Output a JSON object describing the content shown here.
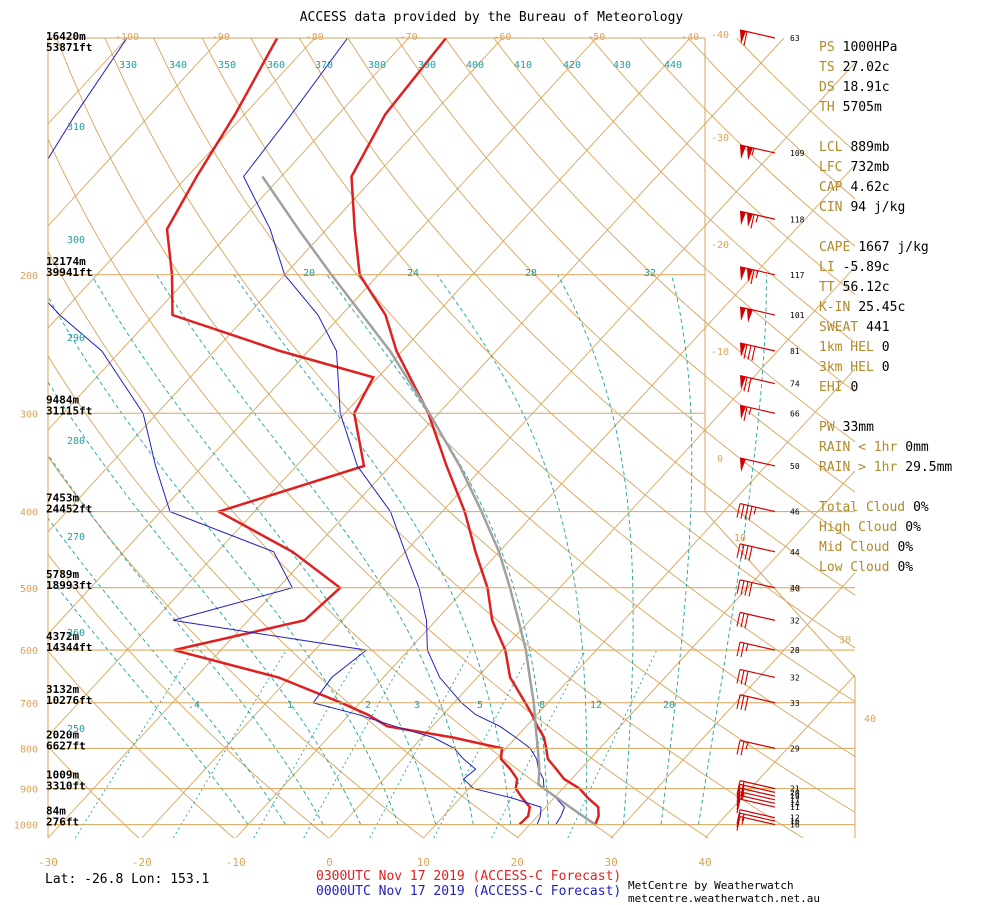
{
  "header": {
    "title": "ACCESS data provided by the Bureau of Meteorology"
  },
  "legend": {
    "forecast_0300": "0300UTC Nov 17 2019 (ACCESS-C Forecast)",
    "forecast_0000": "0000UTC Nov 17 2019 (ACCESS-C Forecast)"
  },
  "location": {
    "text": "Lat: -26.8  Lon: 153.1"
  },
  "credit": {
    "text": "MetCentre by Weatherwatch metcentre.weatherwatch.net.au"
  },
  "colors": {
    "temp_0300": "#e02020",
    "temp_0000": "#2020c0",
    "parcel": "#a0a0a0",
    "isotherm": "#d9a45a",
    "dry_adiabat": "#d9a45a",
    "moist_adiabat": "#20a0a0",
    "mixing_ratio": "#20a0a0",
    "wind_barb": "#d00000",
    "panel_key": "#b08a2a"
  },
  "indices": {
    "group1": [
      {
        "key": "PS",
        "value": "1000HPa"
      },
      {
        "key": "TS",
        "value": "27.02c"
      },
      {
        "key": "DS",
        "value": "18.91c"
      },
      {
        "key": "TH",
        "value": "5705m"
      }
    ],
    "group2": [
      {
        "key": "LCL",
        "value": "889mb"
      },
      {
        "key": "LFC",
        "value": "732mb"
      },
      {
        "key": "CAP",
        "value": "4.62c"
      },
      {
        "key": "CIN",
        "value": "94 j/kg"
      }
    ],
    "group3": [
      {
        "key": "CAPE",
        "value": "1667 j/kg"
      },
      {
        "key": "LI",
        "value": "-5.89c"
      },
      {
        "key": "TT",
        "value": "56.12c"
      },
      {
        "key": "K-IN",
        "value": "25.45c"
      },
      {
        "key": "SWEAT",
        "value": "441"
      },
      {
        "key": "1km HEL",
        "value": "0"
      },
      {
        "key": "3km HEL",
        "value": "0"
      },
      {
        "key": "EHI",
        "value": "0"
      }
    ],
    "group4": [
      {
        "key": "PW",
        "value": "33mm"
      },
      {
        "key": "RAIN < 1hr",
        "value": "0mm"
      },
      {
        "key": "RAIN > 1hr",
        "value": "29.5mm"
      }
    ],
    "group5": [
      {
        "key": "Total Cloud",
        "value": "0%"
      },
      {
        "key": "High Cloud",
        "value": "0%"
      },
      {
        "key": "Mid Cloud",
        "value": "0%"
      },
      {
        "key": "Low Cloud",
        "value": "0%"
      }
    ]
  },
  "chart_data": {
    "type": "line",
    "title": "ACCESS data provided by the Bureau of Meteorology",
    "xlabel": "",
    "ylabel": "",
    "x_ticks": [
      -30,
      -20,
      -10,
      0,
      10,
      20,
      30,
      40
    ],
    "top_x_ticks": [
      -100,
      -90,
      -80,
      -70,
      -60,
      -50,
      -40
    ],
    "pressure_levels": [
      {
        "p": 100,
        "height": "16420m",
        "height_ft": "53871ft"
      },
      {
        "p": 200,
        "height": "12174m",
        "height_ft": "39941ft",
        "label": "200"
      },
      {
        "p": 300,
        "height": "9484m",
        "height_ft": "31115ft",
        "label": "300"
      },
      {
        "p": 400,
        "height": "7453m",
        "height_ft": "24452ft",
        "label": "400"
      },
      {
        "p": 500,
        "height": "5789m",
        "height_ft": "18993ft",
        "label": "500"
      },
      {
        "p": 600,
        "height": "4372m",
        "height_ft": "14344ft",
        "label": "600"
      },
      {
        "p": 700,
        "height": "3132m",
        "height_ft": "10276ft",
        "label": "700"
      },
      {
        "p": 800,
        "height": "2020m",
        "height_ft": "6627ft",
        "label": "800"
      },
      {
        "p": 900,
        "height": "1009m",
        "height_ft": "3310ft",
        "label": "900"
      },
      {
        "p": 1000,
        "height": "84m",
        "height_ft": "276ft",
        "label": "1000"
      }
    ],
    "skewed_temp_labels": [
      "-40",
      "-30",
      "-20",
      "-10",
      "0",
      "10",
      "20",
      "30",
      "40"
    ],
    "theta_labels": [
      "330",
      "340",
      "350",
      "360",
      "370",
      "380",
      "390",
      "400",
      "410",
      "420",
      "430",
      "440",
      "310",
      "300",
      "290",
      "280",
      "270",
      "260",
      "250"
    ],
    "theta_e_labels": [
      "20",
      "24",
      "28",
      "32"
    ],
    "mixing_ratio_labels": [
      ".4",
      "1",
      "2",
      "3",
      "5",
      "8",
      "12",
      "20"
    ],
    "ylim": [
      100,
      1000
    ],
    "xlim": [
      -30,
      40
    ],
    "series": [
      {
        "name": "0300UTC Nov 17 2019 (ACCESS-C Forecast)",
        "kind": "temperature",
        "points": [
          [
            1000,
            27.0
          ],
          [
            975,
            26.5
          ],
          [
            950,
            25.6
          ],
          [
            925,
            23.6
          ],
          [
            900,
            21.8
          ],
          [
            875,
            19.2
          ],
          [
            850,
            17.4
          ],
          [
            825,
            15.5
          ],
          [
            800,
            14.3
          ],
          [
            775,
            13.0
          ],
          [
            750,
            11.2
          ],
          [
            725,
            9.5
          ],
          [
            700,
            7.6
          ],
          [
            650,
            3.5
          ],
          [
            600,
            0.3
          ],
          [
            550,
            -4.0
          ],
          [
            500,
            -7.7
          ],
          [
            450,
            -12.5
          ],
          [
            400,
            -17.6
          ],
          [
            350,
            -24.0
          ],
          [
            300,
            -31.1
          ],
          [
            250,
            -40.6
          ],
          [
            225,
            -45.3
          ],
          [
            200,
            -52.0
          ],
          [
            175,
            -57.0
          ],
          [
            150,
            -62.5
          ],
          [
            125,
            -65.0
          ],
          [
            100,
            -66.0
          ]
        ]
      },
      {
        "name": "0300UTC Nov 17 2019 (ACCESS-C Forecast)",
        "kind": "dewpoint",
        "points": [
          [
            1000,
            18.9
          ],
          [
            975,
            19.0
          ],
          [
            950,
            18.3
          ],
          [
            925,
            16.6
          ],
          [
            900,
            15.0
          ],
          [
            875,
            14.2
          ],
          [
            850,
            12.5
          ],
          [
            825,
            10.5
          ],
          [
            800,
            9.6
          ],
          [
            775,
            3.3
          ],
          [
            750,
            -4.8
          ],
          [
            725,
            -8.0
          ],
          [
            700,
            -12.0
          ],
          [
            650,
            -21.2
          ],
          [
            600,
            -35.0
          ],
          [
            550,
            -24.0
          ],
          [
            500,
            -23.4
          ],
          [
            450,
            -32.0
          ],
          [
            400,
            -43.8
          ],
          [
            350,
            -32.8
          ],
          [
            300,
            -39.0
          ],
          [
            270,
            -40.5
          ],
          [
            250,
            -53.0
          ],
          [
            225,
            -68.0
          ],
          [
            200,
            -72.0
          ],
          [
            175,
            -77.0
          ],
          [
            150,
            -79.0
          ],
          [
            125,
            -81.0
          ],
          [
            100,
            -84.0
          ]
        ]
      },
      {
        "name": "0000UTC Nov 17 2019 (ACCESS-C Forecast)",
        "kind": "temperature",
        "points": [
          [
            1000,
            22.8
          ],
          [
            975,
            22.5
          ],
          [
            950,
            22.0
          ],
          [
            925,
            20.2
          ],
          [
            900,
            18.0
          ],
          [
            875,
            17.0
          ],
          [
            850,
            15.5
          ],
          [
            825,
            14.3
          ],
          [
            800,
            12.6
          ],
          [
            775,
            10.0
          ],
          [
            750,
            7.2
          ],
          [
            725,
            3.5
          ],
          [
            700,
            0.8
          ],
          [
            650,
            -4.0
          ],
          [
            600,
            -8.0
          ],
          [
            550,
            -11.0
          ],
          [
            500,
            -15.0
          ],
          [
            450,
            -20.0
          ],
          [
            400,
            -25.5
          ],
          [
            350,
            -33.5
          ],
          [
            300,
            -40.5
          ],
          [
            250,
            -47.0
          ],
          [
            225,
            -52.5
          ],
          [
            200,
            -60.0
          ],
          [
            175,
            -66.0
          ],
          [
            150,
            -74.0
          ],
          [
            125,
            -75.0
          ],
          [
            100,
            -76.5
          ]
        ]
      },
      {
        "name": "0000UTC Nov 17 2019 (ACCESS-C Forecast)",
        "kind": "dewpoint",
        "points": [
          [
            1000,
            20.8
          ],
          [
            975,
            20.3
          ],
          [
            950,
            19.5
          ],
          [
            925,
            15.5
          ],
          [
            900,
            10.5
          ],
          [
            875,
            8.5
          ],
          [
            850,
            8.8
          ],
          [
            825,
            6.5
          ],
          [
            800,
            4.5
          ],
          [
            775,
            1.2
          ],
          [
            750,
            -4.0
          ],
          [
            725,
            -9.0
          ],
          [
            700,
            -15.0
          ],
          [
            650,
            -15.5
          ],
          [
            600,
            -14.5
          ],
          [
            550,
            -38.0
          ],
          [
            500,
            -28.5
          ],
          [
            450,
            -34.0
          ],
          [
            400,
            -49.0
          ],
          [
            350,
            -55.0
          ],
          [
            300,
            -61.5
          ],
          [
            250,
            -72.0
          ],
          [
            225,
            -80.0
          ],
          [
            200,
            -88.0
          ],
          [
            175,
            -92.0
          ],
          [
            150,
            -96.0
          ],
          [
            125,
            -98.0
          ],
          [
            100,
            -100.0
          ]
        ]
      },
      {
        "name": "",
        "kind": "parcel",
        "points": [
          [
            1000,
            27.0
          ],
          [
            950,
            22.6
          ],
          [
            900,
            18.0
          ],
          [
            889,
            17.0
          ],
          [
            850,
            15.6
          ],
          [
            800,
            13.4
          ],
          [
            750,
            11.0
          ],
          [
            700,
            8.5
          ],
          [
            650,
            5.6
          ],
          [
            600,
            2.5
          ],
          [
            550,
            -1.2
          ],
          [
            500,
            -5.3
          ],
          [
            450,
            -10.0
          ],
          [
            400,
            -15.8
          ],
          [
            350,
            -22.6
          ],
          [
            300,
            -31.0
          ],
          [
            250,
            -41.3
          ],
          [
            200,
            -55.0
          ],
          [
            175,
            -63.0
          ],
          [
            150,
            -72.0
          ]
        ]
      }
    ],
    "wind_barbs": [
      {
        "p": 1000,
        "speed": 16
      },
      {
        "p": 990,
        "speed": 16
      },
      {
        "p": 980,
        "speed": 12
      },
      {
        "p": 950,
        "speed": 11
      },
      {
        "p": 940,
        "speed": 14
      },
      {
        "p": 930,
        "speed": 17
      },
      {
        "p": 920,
        "speed": 19
      },
      {
        "p": 910,
        "speed": 20
      },
      {
        "p": 900,
        "speed": 21
      },
      {
        "p": 800,
        "speed": 29
      },
      {
        "p": 700,
        "speed": 33
      },
      {
        "p": 650,
        "speed": 32
      },
      {
        "p": 600,
        "speed": 28
      },
      {
        "p": 550,
        "speed": 32
      },
      {
        "p": 500,
        "speed": 40
      },
      {
        "p": 450,
        "speed": 44
      },
      {
        "p": 400,
        "speed": 46
      },
      {
        "p": 350,
        "speed": 50
      },
      {
        "p": 300,
        "speed": 66
      },
      {
        "p": 275,
        "speed": 74
      },
      {
        "p": 250,
        "speed": 81
      },
      {
        "p": 225,
        "speed": 101
      },
      {
        "p": 200,
        "speed": 117
      },
      {
        "p": 170,
        "speed": 118
      },
      {
        "p": 140,
        "speed": 109
      },
      {
        "p": 100,
        "speed": 63
      }
    ]
  }
}
